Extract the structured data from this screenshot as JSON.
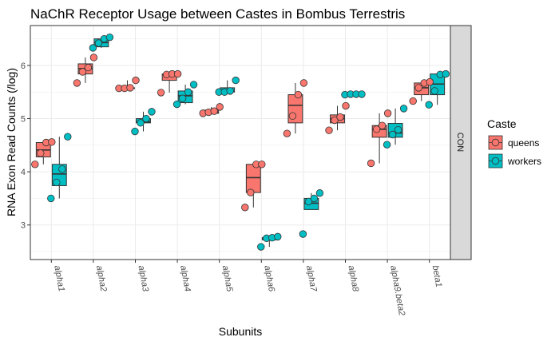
{
  "chart_data": {
    "type": "box",
    "title": "NaChR Receptor Usage between Castes in Bombus Terrestris",
    "xlabel": "Subunits",
    "ylabel": "RNA Exon Read Counts (/log)",
    "ylim": [
      2.35,
      6.75
    ],
    "yticks": [
      3,
      4,
      5,
      6
    ],
    "grid": true,
    "facet_label": "CON",
    "legend_title": "Caste",
    "legend_position": "right",
    "categories": [
      "alpha1",
      "alpha2",
      "alpha3",
      "alpha4",
      "alpha5",
      "alpha6",
      "alpha7",
      "alpha8",
      "alpha9.beta2",
      "beta1"
    ],
    "series": [
      {
        "name": "queens",
        "color": "#F8766D",
        "boxes": [
          {
            "q1": 4.28,
            "median": 4.41,
            "q3": 4.55,
            "whisker_low": 4.14,
            "whisker_high": 4.57,
            "points": [
              4.14,
              4.35,
              4.55,
              4.56
            ]
          },
          {
            "q1": 5.84,
            "median": 5.94,
            "q3": 6.03,
            "whisker_low": 5.67,
            "whisker_high": 6.15,
            "points": [
              5.67,
              5.88,
              5.96,
              6.15
            ]
          },
          {
            "q1": 5.57,
            "median": 5.57,
            "q3": 5.58,
            "whisker_low": 5.57,
            "whisker_high": 5.72,
            "points": [
              5.57,
              5.57,
              5.58,
              5.72
            ]
          },
          {
            "q1": 5.72,
            "median": 5.83,
            "q3": 5.84,
            "whisker_low": 5.49,
            "whisker_high": 5.84,
            "points": [
              5.49,
              5.83,
              5.84,
              5.84
            ]
          },
          {
            "q1": 5.1,
            "median": 5.12,
            "q3": 5.16,
            "whisker_low": 5.1,
            "whisker_high": 5.22,
            "points": [
              5.1,
              5.12,
              5.14,
              5.22
            ]
          },
          {
            "q1": 3.61,
            "median": 3.89,
            "q3": 4.14,
            "whisker_low": 3.33,
            "whisker_high": 4.14,
            "points": [
              3.33,
              3.61,
              4.14,
              4.14
            ]
          },
          {
            "q1": 4.92,
            "median": 5.25,
            "q3": 5.45,
            "whisker_low": 4.72,
            "whisker_high": 5.67,
            "points": [
              4.72,
              5.05,
              5.45,
              5.67
            ]
          },
          {
            "q1": 4.92,
            "median": 5.0,
            "q3": 5.07,
            "whisker_low": 4.78,
            "whisker_high": 5.24,
            "points": [
              4.78,
              4.97,
              5.03,
              5.24
            ]
          },
          {
            "q1": 4.65,
            "median": 4.8,
            "q3": 4.87,
            "whisker_low": 4.16,
            "whisker_high": 5.1,
            "points": [
              4.16,
              4.8,
              4.87,
              5.1
            ]
          },
          {
            "q1": 5.45,
            "median": 5.58,
            "q3": 5.67,
            "whisker_low": 5.33,
            "whisker_high": 5.69,
            "points": [
              5.33,
              5.58,
              5.67,
              5.69
            ]
          }
        ]
      },
      {
        "name": "workers",
        "color": "#00BFC4",
        "boxes": [
          {
            "q1": 3.74,
            "median": 3.96,
            "q3": 4.14,
            "whisker_low": 3.5,
            "whisker_high": 4.66,
            "points": [
              3.5,
              3.8,
              4.05,
              4.66
            ]
          },
          {
            "q1": 6.35,
            "median": 6.43,
            "q3": 6.5,
            "whisker_low": 6.33,
            "whisker_high": 6.53,
            "points": [
              6.33,
              6.42,
              6.5,
              6.53
            ]
          },
          {
            "q1": 4.92,
            "median": 4.94,
            "q3": 5.0,
            "whisker_low": 4.76,
            "whisker_high": 5.13,
            "points": [
              4.76,
              4.92,
              5.0,
              5.13
            ]
          },
          {
            "q1": 5.3,
            "median": 5.43,
            "q3": 5.52,
            "whisker_low": 5.27,
            "whisker_high": 5.64,
            "points": [
              5.27,
              5.38,
              5.5,
              5.64
            ]
          },
          {
            "q1": 5.5,
            "median": 5.51,
            "q3": 5.58,
            "whisker_low": 5.5,
            "whisker_high": 5.72,
            "points": [
              5.5,
              5.5,
              5.52,
              5.72
            ]
          },
          {
            "q1": 2.72,
            "median": 2.76,
            "q3": 2.76,
            "whisker_low": 2.59,
            "whisker_high": 2.78,
            "points": [
              2.59,
              2.75,
              2.76,
              2.78
            ]
          },
          {
            "q1": 3.29,
            "median": 3.41,
            "q3": 3.5,
            "whisker_low": 3.29,
            "whisker_high": 3.6,
            "points": [
              2.83,
              3.44,
              3.5,
              3.6
            ]
          },
          {
            "q1": 5.45,
            "median": 5.46,
            "q3": 5.46,
            "whisker_low": 5.45,
            "whisker_high": 5.46,
            "points": [
              5.45,
              5.46,
              5.46,
              5.46
            ]
          },
          {
            "q1": 4.65,
            "median": 4.73,
            "q3": 4.91,
            "whisker_low": 4.51,
            "whisker_high": 5.19,
            "points": [
              4.51,
              4.7,
              4.79,
              5.19
            ]
          },
          {
            "q1": 5.45,
            "median": 5.65,
            "q3": 5.84,
            "whisker_low": 5.26,
            "whisker_high": 5.84,
            "points": [
              5.26,
              5.52,
              5.83,
              5.84
            ]
          }
        ]
      }
    ]
  }
}
